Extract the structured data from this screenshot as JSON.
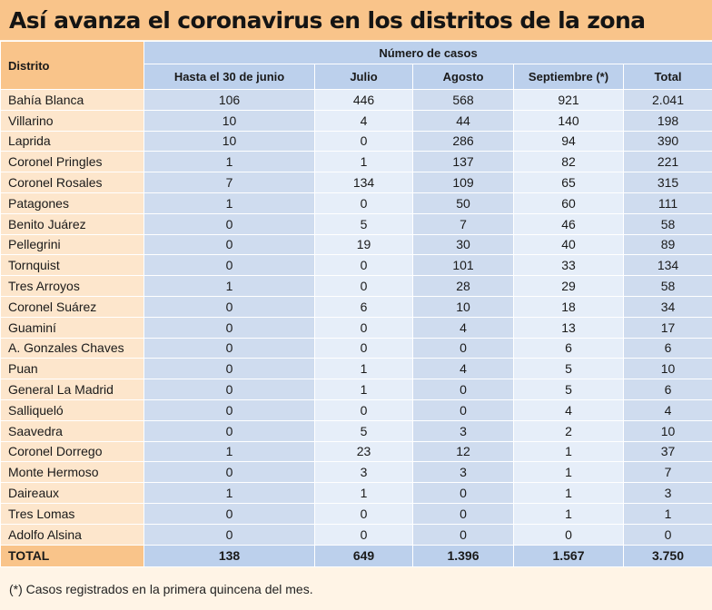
{
  "title": "Así avanza el coronavirus en los distritos de la zona",
  "table": {
    "district_header": "Distrito",
    "group_header": "Número de casos",
    "columns": [
      "Hasta el 30 de junio",
      "Julio",
      "Agosto",
      "Septiembre (*)",
      "Total"
    ],
    "rows": [
      {
        "name": "Bahía Blanca",
        "values": [
          "106",
          "446",
          "568",
          "921",
          "2.041"
        ]
      },
      {
        "name": "Villarino",
        "values": [
          "10",
          "4",
          "44",
          "140",
          "198"
        ]
      },
      {
        "name": "Laprida",
        "values": [
          "10",
          "0",
          "286",
          "94",
          "390"
        ]
      },
      {
        "name": "Coronel Pringles",
        "values": [
          "1",
          "1",
          "137",
          "82",
          "221"
        ]
      },
      {
        "name": "Coronel Rosales",
        "values": [
          "7",
          "134",
          "109",
          "65",
          "315"
        ]
      },
      {
        "name": "Patagones",
        "values": [
          "1",
          "0",
          "50",
          "60",
          "111"
        ]
      },
      {
        "name": "Benito Juárez",
        "values": [
          "0",
          "5",
          "7",
          "46",
          "58"
        ]
      },
      {
        "name": "Pellegrini",
        "values": [
          "0",
          "19",
          "30",
          "40",
          "89"
        ]
      },
      {
        "name": "Tornquist",
        "values": [
          "0",
          "0",
          "101",
          "33",
          "134"
        ]
      },
      {
        "name": "Tres Arroyos",
        "values": [
          "1",
          "0",
          "28",
          "29",
          "58"
        ]
      },
      {
        "name": "Coronel Suárez",
        "values": [
          "0",
          "6",
          "10",
          "18",
          "34"
        ]
      },
      {
        "name": "Guaminí",
        "values": [
          "0",
          "0",
          "4",
          "13",
          "17"
        ]
      },
      {
        "name": "A. Gonzales Chaves",
        "values": [
          "0",
          "0",
          "0",
          "6",
          "6"
        ]
      },
      {
        "name": "Puan",
        "values": [
          "0",
          "1",
          "4",
          "5",
          "10"
        ]
      },
      {
        "name": "General La Madrid",
        "values": [
          "0",
          "1",
          "0",
          "5",
          "6"
        ]
      },
      {
        "name": "Salliqueló",
        "values": [
          "0",
          "0",
          "0",
          "4",
          "4"
        ]
      },
      {
        "name": "Saavedra",
        "values": [
          "0",
          "5",
          "3",
          "2",
          "10"
        ]
      },
      {
        "name": "Coronel Dorrego",
        "values": [
          "1",
          "23",
          "12",
          "1",
          "37"
        ]
      },
      {
        "name": "Monte Hermoso",
        "values": [
          "0",
          "3",
          "3",
          "1",
          "7"
        ]
      },
      {
        "name": "Daireaux",
        "values": [
          "1",
          "1",
          "0",
          "1",
          "3"
        ]
      },
      {
        "name": "Tres Lomas",
        "values": [
          "0",
          "0",
          "0",
          "1",
          "1"
        ]
      },
      {
        "name": "Adolfo Alsina",
        "values": [
          "0",
          "0",
          "0",
          "0",
          "0"
        ]
      }
    ],
    "total_row": {
      "name": "TOTAL",
      "values": [
        "138",
        "649",
        "1.396",
        "1.567",
        "3.750"
      ]
    }
  },
  "footnote": "(*) Casos registrados en la primera quincena del mes.",
  "colors": {
    "title_bg": "#f9c48a",
    "name_bg": "#fde6cc",
    "header_bg": "#bcd0ec",
    "cell_dark": "#cfdcef",
    "cell_light": "#e6eef9"
  }
}
